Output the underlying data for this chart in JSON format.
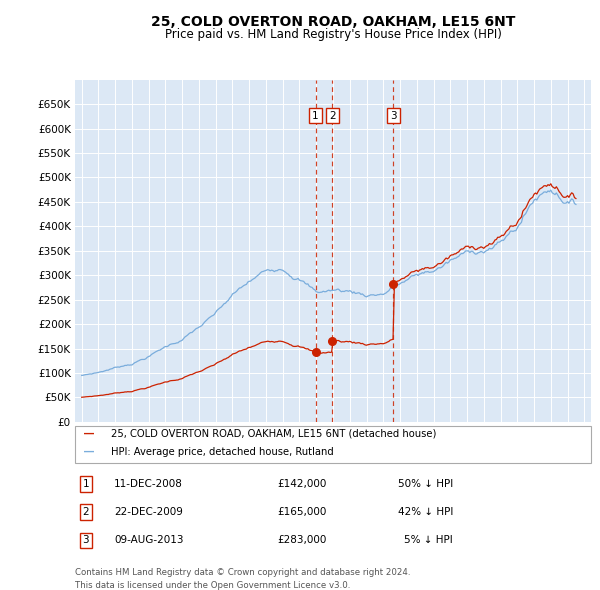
{
  "title": "25, COLD OVERTON ROAD, OAKHAM, LE15 6NT",
  "subtitle": "Price paid vs. HM Land Registry's House Price Index (HPI)",
  "legend_line1": "25, COLD OVERTON ROAD, OAKHAM, LE15 6NT (detached house)",
  "legend_line2": "HPI: Average price, detached house, Rutland",
  "footer1": "Contains HM Land Registry data © Crown copyright and database right 2024.",
  "footer2": "This data is licensed under the Open Government Licence v3.0.",
  "transactions": [
    {
      "num": 1,
      "date": "11-DEC-2008",
      "price": 142000,
      "pct": "50%",
      "dir": "↓",
      "year": 2008.958
    },
    {
      "num": 2,
      "date": "22-DEC-2009",
      "price": 165000,
      "pct": "42%",
      "dir": "↓",
      "year": 2009.958
    },
    {
      "num": 3,
      "date": "09-AUG-2013",
      "price": 283000,
      "pct": "5%",
      "dir": "↓",
      "year": 2013.608
    }
  ],
  "hpi_color": "#7aaddc",
  "red_color": "#cc2200",
  "bg_color": "#dce8f5",
  "grid_color": "#ffffff",
  "vline_color": "#cc2200",
  "box_color": "#cc2200",
  "ylim": [
    0,
    700000
  ],
  "ytick_values": [
    0,
    50000,
    100000,
    150000,
    200000,
    250000,
    300000,
    350000,
    400000,
    450000,
    500000,
    550000,
    600000,
    650000
  ],
  "xlim_left": 1994.6,
  "xlim_right": 2025.4,
  "xtick_values": [
    1995,
    1996,
    1997,
    1998,
    1999,
    2000,
    2001,
    2002,
    2003,
    2004,
    2005,
    2006,
    2007,
    2008,
    2009,
    2010,
    2011,
    2012,
    2013,
    2014,
    2015,
    2016,
    2017,
    2018,
    2019,
    2020,
    2021,
    2022,
    2023,
    2024,
    2025
  ]
}
